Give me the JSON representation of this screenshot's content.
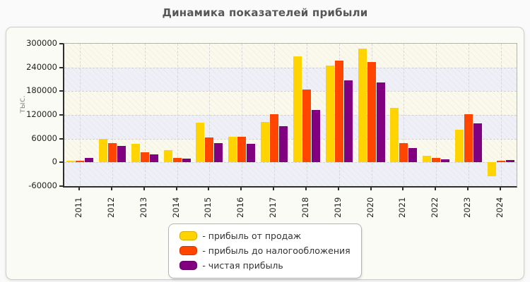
{
  "title": "Динамика показателей прибыли",
  "legend": {
    "prefix": "- "
  },
  "chart_data": {
    "type": "bar",
    "title": "Динамика показателей прибыли",
    "xlabel": "",
    "ylabel": "тыс.",
    "ylim": [
      -60000,
      300000
    ],
    "yticks": [
      300000,
      240000,
      180000,
      120000,
      60000,
      0,
      -60000
    ],
    "grid": true,
    "legend_position": "bottom-center",
    "categories": [
      "2011",
      "2012",
      "2013",
      "2014",
      "2015",
      "2016",
      "2017",
      "2018",
      "2019",
      "2020",
      "2021",
      "2022",
      "2023",
      "2024"
    ],
    "series": [
      {
        "name": "прибыль от продаж",
        "color": "#ffd400",
        "values": [
          4000,
          60000,
          47000,
          31000,
          100000,
          65000,
          102000,
          268000,
          245000,
          287000,
          137000,
          17000,
          83000,
          -35000
        ]
      },
      {
        "name": "прибыль до налогообложения",
        "color": "#ff4500",
        "values": [
          4000,
          49000,
          26000,
          12000,
          63000,
          64000,
          121000,
          184000,
          258000,
          253000,
          48000,
          11000,
          122000,
          5000
        ]
      },
      {
        "name": "чистая прибыль",
        "color": "#800080",
        "values": [
          11000,
          41000,
          21000,
          9000,
          48000,
          47000,
          92000,
          133000,
          207000,
          202000,
          37000,
          8000,
          98000,
          6000
        ]
      }
    ]
  }
}
